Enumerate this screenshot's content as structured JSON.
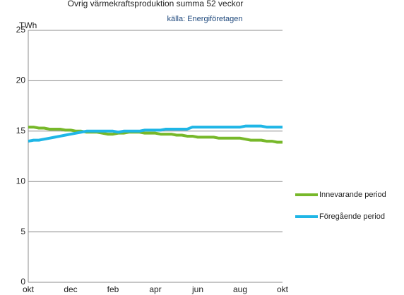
{
  "chart_data": {
    "type": "line",
    "title": "Övrig värmekraftsproduktion summa 52 veckor",
    "subtitle": "källa: Energiföretagen",
    "y_label": "TWh",
    "categories": [
      "okt",
      null,
      null,
      null,
      null,
      null,
      null,
      null,
      "dec",
      null,
      null,
      null,
      null,
      null,
      null,
      null,
      "feb",
      null,
      null,
      null,
      null,
      null,
      null,
      null,
      "apr",
      null,
      null,
      null,
      null,
      null,
      null,
      null,
      "jun",
      null,
      null,
      null,
      null,
      null,
      null,
      null,
      "aug",
      null,
      null,
      null,
      null,
      null,
      null,
      null,
      "okt"
    ],
    "series": [
      {
        "name": "Innevarande period",
        "color": "#77b82a",
        "values": [
          15.4,
          15.4,
          15.3,
          15.3,
          15.2,
          15.2,
          15.2,
          15.1,
          15.1,
          15.0,
          15.0,
          14.9,
          14.9,
          14.9,
          14.8,
          14.7,
          14.7,
          14.8,
          14.8,
          14.9,
          14.9,
          14.9,
          14.8,
          14.8,
          14.8,
          14.7,
          14.7,
          14.7,
          14.6,
          14.6,
          14.5,
          14.5,
          14.4,
          14.4,
          14.4,
          14.4,
          14.3,
          14.3,
          14.3,
          14.3,
          14.3,
          14.2,
          14.1,
          14.1,
          14.1,
          14.0,
          14.0,
          13.9,
          13.9
        ]
      },
      {
        "name": "Föregående period",
        "color": "#1fb6e6",
        "values": [
          14.0,
          14.1,
          14.1,
          14.2,
          14.3,
          14.4,
          14.5,
          14.6,
          14.7,
          14.8,
          14.9,
          15.0,
          15.0,
          15.0,
          15.0,
          15.0,
          15.0,
          14.9,
          15.0,
          15.0,
          15.0,
          15.0,
          15.1,
          15.1,
          15.1,
          15.1,
          15.2,
          15.2,
          15.2,
          15.2,
          15.2,
          15.4,
          15.4,
          15.4,
          15.4,
          15.4,
          15.4,
          15.4,
          15.4,
          15.4,
          15.4,
          15.5,
          15.5,
          15.5,
          15.5,
          15.4,
          15.4,
          15.4,
          15.4
        ]
      }
    ],
    "ylim": [
      0,
      25
    ],
    "yticks": [
      0,
      5,
      10,
      15,
      20,
      25
    ],
    "grid": true,
    "legend": "right"
  }
}
